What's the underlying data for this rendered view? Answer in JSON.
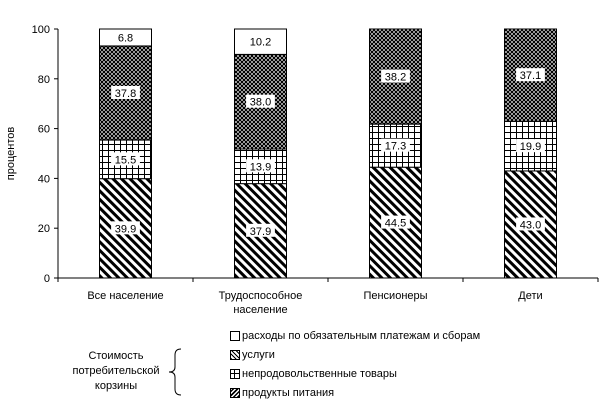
{
  "chart_data": {
    "type": "bar",
    "stacked": true,
    "title": "",
    "xlabel": "",
    "ylabel": "процентов",
    "ylim": [
      0,
      100
    ],
    "yticks": [
      0,
      20,
      40,
      60,
      80,
      100
    ],
    "grid": false,
    "legend_placement": "bottom",
    "categories": [
      [
        "Все население"
      ],
      [
        "Трудоспособное",
        "население"
      ],
      [
        "Пенсионеры"
      ],
      [
        "Дети"
      ]
    ],
    "series": [
      {
        "name": "продукты питания",
        "pattern": "diagonal-hatch",
        "values": [
          39.9,
          37.9,
          44.5,
          43.0
        ],
        "labels": [
          "39.9",
          "37.9",
          "44.5",
          "43.0"
        ]
      },
      {
        "name": "непродовольственные товары",
        "pattern": "grid",
        "values": [
          15.5,
          13.9,
          17.3,
          19.9
        ],
        "labels": [
          "15.5",
          "13.9",
          "17.3",
          "19.9"
        ]
      },
      {
        "name": "услуги",
        "pattern": "crosshatch",
        "values": [
          37.8,
          38.0,
          38.2,
          37.1
        ],
        "labels": [
          "37.8",
          "38.0",
          "38.2",
          "37.1"
        ]
      },
      {
        "name": "расходы по обязательным платежам и сборам",
        "pattern": "white",
        "values": [
          6.8,
          10.2,
          0,
          0
        ],
        "labels": [
          "6.8",
          "10.2",
          "",
          ""
        ]
      }
    ]
  },
  "legend": {
    "items": [
      {
        "label": "расходы по обязательным платежам и сборам",
        "pattern": "white"
      },
      {
        "label": "услуги",
        "pattern": "crosshatch"
      },
      {
        "label": "непродовольственные товары",
        "pattern": "grid"
      },
      {
        "label": "продукты питания",
        "pattern": "diagonal-hatch"
      }
    ]
  },
  "note": {
    "text": "Стоимость потребительской корзины"
  }
}
